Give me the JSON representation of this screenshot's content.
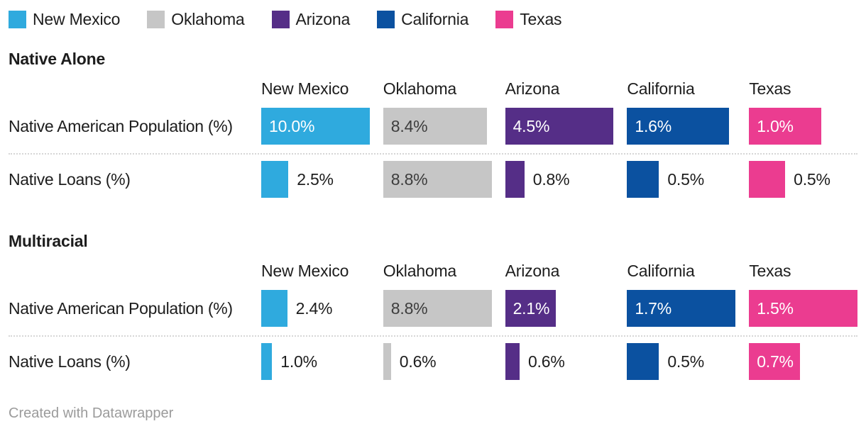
{
  "columns": [
    {
      "name": "New Mexico",
      "color": "#2FAADE",
      "max": 10.0,
      "inside_label_dark": false
    },
    {
      "name": "Oklahoma",
      "color": "#C6C6C6",
      "max": 8.8,
      "inside_label_dark": true
    },
    {
      "name": "Arizona",
      "color": "#552E87",
      "max": 4.5,
      "inside_label_dark": false
    },
    {
      "name": "California",
      "color": "#0B51A0",
      "max": 1.7,
      "inside_label_dark": false
    },
    {
      "name": "Texas",
      "color": "#EB3C90",
      "max": 1.5,
      "inside_label_dark": false
    }
  ],
  "sections": [
    {
      "title": "Native Alone",
      "rows": [
        {
          "label": "Native American Population (%)",
          "cells": [
            {
              "value": 10.0,
              "label": "10.0%",
              "inside": true
            },
            {
              "value": 8.4,
              "label": "8.4%",
              "inside": true
            },
            {
              "value": 4.5,
              "label": "4.5%",
              "inside": true
            },
            {
              "value": 1.6,
              "label": "1.6%",
              "inside": true
            },
            {
              "value": 1.0,
              "label": "1.0%",
              "inside": true
            }
          ]
        },
        {
          "label": "Native Loans (%)",
          "cells": [
            {
              "value": 2.5,
              "label": "2.5%",
              "inside": false
            },
            {
              "value": 8.8,
              "label": "8.8%",
              "inside": true
            },
            {
              "value": 0.8,
              "label": "0.8%",
              "inside": false
            },
            {
              "value": 0.5,
              "label": "0.5%",
              "inside": false
            },
            {
              "value": 0.5,
              "label": "0.5%",
              "inside": false
            }
          ]
        }
      ]
    },
    {
      "title": "Multiracial",
      "rows": [
        {
          "label": "Native American Population (%)",
          "cells": [
            {
              "value": 2.4,
              "label": "2.4%",
              "inside": false
            },
            {
              "value": 8.8,
              "label": "8.8%",
              "inside": true
            },
            {
              "value": 2.1,
              "label": "2.1%",
              "inside": true
            },
            {
              "value": 1.7,
              "label": "1.7%",
              "inside": true
            },
            {
              "value": 1.5,
              "label": "1.5%",
              "inside": true
            }
          ]
        },
        {
          "label": "Native Loans (%)",
          "cells": [
            {
              "value": 1.0,
              "label": "1.0%",
              "inside": false
            },
            {
              "value": 0.6,
              "label": "0.6%",
              "inside": false
            },
            {
              "value": 0.6,
              "label": "0.6%",
              "inside": false
            },
            {
              "value": 0.5,
              "label": "0.5%",
              "inside": false
            },
            {
              "value": 0.7,
              "label": "0.7%",
              "inside": true
            }
          ]
        }
      ]
    }
  ],
  "footer": {
    "credit": "Created with Datawrapper"
  },
  "colors": {
    "text": "#1D1D1D",
    "inside_label_light": "#FFFFFF",
    "inside_label_dark": "#3D3D3D",
    "separator": "#D6D6D6",
    "footer_text": "#9B9B9B"
  },
  "chart_data": {
    "type": "bar",
    "title": "",
    "categories": [
      "New Mexico",
      "Oklahoma",
      "Arizona",
      "California",
      "Texas"
    ],
    "unit": "%",
    "legend_position": "top",
    "grid": false,
    "bar_scaling": "each column scaled independently to the column maximum across all rows",
    "column_max": {
      "New Mexico": 10.0,
      "Oklahoma": 8.8,
      "Arizona": 4.5,
      "California": 1.7,
      "Texas": 1.5
    },
    "series": [
      {
        "group": "Native Alone",
        "name": "Native American Population (%)",
        "values": [
          10.0,
          8.4,
          4.5,
          1.6,
          1.0
        ]
      },
      {
        "group": "Native Alone",
        "name": "Native Loans (%)",
        "values": [
          2.5,
          8.8,
          0.8,
          0.5,
          0.5
        ]
      },
      {
        "group": "Multiracial",
        "name": "Native American Population (%)",
        "values": [
          2.4,
          8.8,
          2.1,
          1.7,
          1.5
        ]
      },
      {
        "group": "Multiracial",
        "name": "Native Loans (%)",
        "values": [
          1.0,
          0.6,
          0.6,
          0.5,
          0.7
        ]
      }
    ],
    "colors": {
      "New Mexico": "#2FAADE",
      "Oklahoma": "#C6C6C6",
      "Arizona": "#552E87",
      "California": "#0B51A0",
      "Texas": "#EB3C90"
    },
    "credit": "Created with Datawrapper"
  }
}
